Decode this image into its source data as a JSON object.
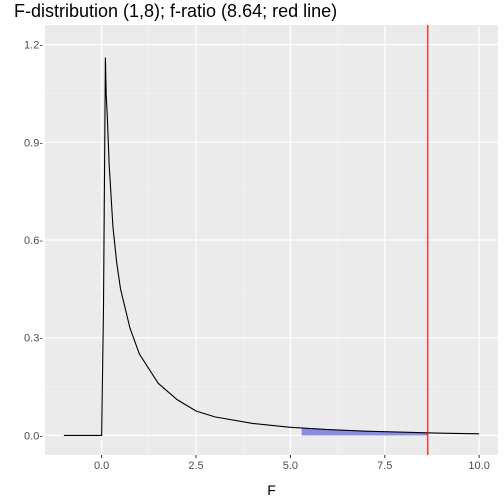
{
  "chart_data": {
    "type": "line",
    "title": "F-distribution (1,8); f-ratio (8.64; red line)",
    "xlabel": "F",
    "ylabel": "",
    "xlim": [
      -1.5,
      10.5
    ],
    "ylim": [
      -0.06,
      1.26
    ],
    "x_ticks": [
      0.0,
      2.5,
      5.0,
      7.5,
      10.0
    ],
    "x_tick_labels": [
      "0.0",
      "2.5",
      "5.0",
      "7.5",
      "10.0"
    ],
    "y_ticks": [
      0.0,
      0.3,
      0.6,
      0.9,
      1.2
    ],
    "y_tick_labels": [
      "0.0-",
      "0.3-",
      "0.6-",
      "0.9-",
      "1.2-"
    ],
    "grid": true,
    "series": [
      {
        "color": "#000000",
        "x": [
          -1.0,
          0.0,
          0.05,
          0.1,
          0.12,
          0.15,
          0.2,
          0.3,
          0.4,
          0.5,
          0.75,
          1.0,
          1.5,
          2.0,
          2.5,
          3.0,
          4.0,
          5.0,
          6.0,
          7.0,
          8.0,
          9.0,
          10.0
        ],
        "y": [
          0.0,
          0.0,
          0.4,
          1.16,
          1.05,
          0.98,
          0.83,
          0.64,
          0.53,
          0.45,
          0.33,
          0.25,
          0.16,
          0.11,
          0.075,
          0.057,
          0.037,
          0.025,
          0.018,
          0.013,
          0.01,
          0.007,
          0.005
        ]
      }
    ],
    "shaded_region": {
      "x_from": 5.3,
      "x_to": 8.64,
      "color": "#6b6bdb"
    },
    "vline": {
      "x": 8.64,
      "color": "#ff0000"
    }
  }
}
